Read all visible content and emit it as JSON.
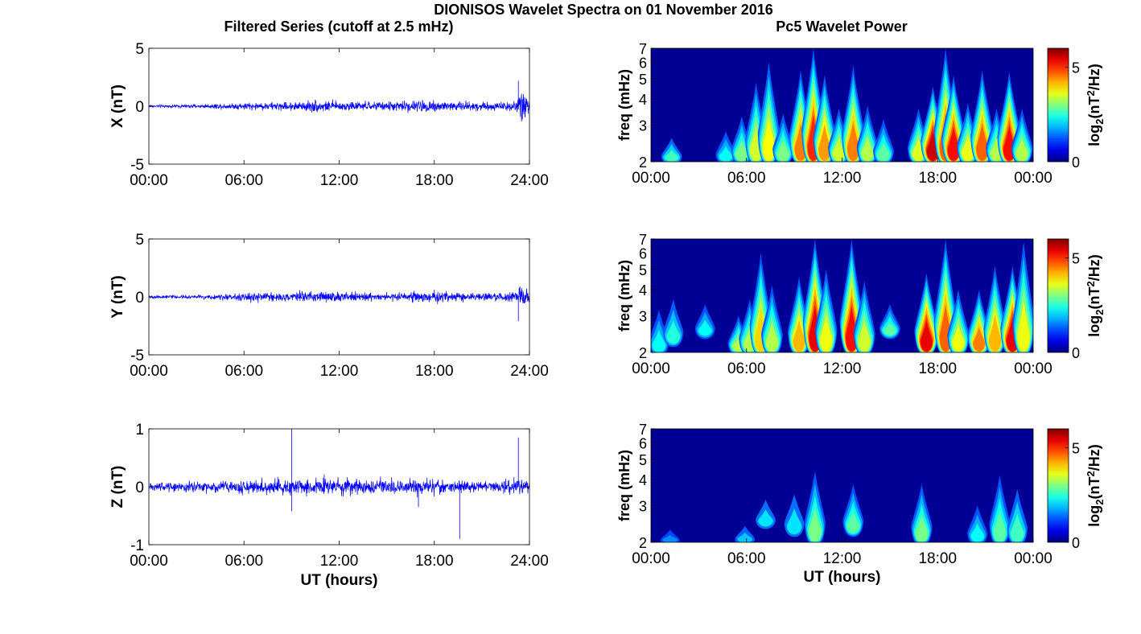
{
  "title": "DIONISOS Wavelet Spectra on 01 November 2016",
  "left_title": "Filtered Series (cutoff at 2.5 mHz)",
  "right_title": "Pc5 Wavelet Power",
  "x_axis_label": "UT (hours)",
  "chart_data": [
    {
      "type": "line",
      "component": "X",
      "ylabel": "X (nT)",
      "xlabel": "",
      "xlim": [
        0,
        24
      ],
      "ylim": [
        -5,
        5
      ],
      "xticks": [
        0,
        6,
        12,
        18,
        24
      ],
      "xtick_labels": [
        "00:00",
        "06:00",
        "12:00",
        "18:00",
        "24:00"
      ],
      "yticks": [
        -5,
        0,
        5
      ],
      "ytick_labels": [
        "-5",
        "0",
        "5"
      ],
      "color": "#0000ff",
      "envelope": {
        "hours": [
          0,
          3,
          6,
          9,
          10.5,
          12,
          15,
          17.5,
          20,
          22.5,
          23.2,
          23.6,
          24
        ],
        "amplitude_nT": [
          0.12,
          0.15,
          0.3,
          0.35,
          0.5,
          0.4,
          0.35,
          0.55,
          0.4,
          0.35,
          0.5,
          1.5,
          0.6
        ]
      },
      "spikes": [
        {
          "hour": 23.3,
          "value": 2.2
        },
        {
          "hour": 23.5,
          "value": -1.3
        }
      ]
    },
    {
      "type": "line",
      "component": "Y",
      "ylabel": "Y (nT)",
      "xlabel": "",
      "xlim": [
        0,
        24
      ],
      "ylim": [
        -5,
        5
      ],
      "xticks": [
        0,
        6,
        12,
        18,
        24
      ],
      "xtick_labels": [
        "00:00",
        "06:00",
        "12:00",
        "18:00",
        "24:00"
      ],
      "yticks": [
        -5,
        0,
        5
      ],
      "ytick_labels": [
        "-5",
        "0",
        "5"
      ],
      "color": "#0000ff",
      "envelope": {
        "hours": [
          0,
          3,
          6,
          9,
          11,
          12.5,
          15,
          17.5,
          20,
          22.5,
          23.3,
          23.7,
          24
        ],
        "amplitude_nT": [
          0.15,
          0.15,
          0.4,
          0.35,
          0.45,
          0.4,
          0.3,
          0.5,
          0.3,
          0.35,
          0.6,
          1.2,
          0.4
        ]
      },
      "spikes": [
        {
          "hour": 23.3,
          "value": -2.1
        },
        {
          "hour": 23.4,
          "value": 0.9
        }
      ]
    },
    {
      "type": "line",
      "component": "Z",
      "ylabel": "Z (nT)",
      "xlabel": "UT (hours)",
      "xlim": [
        0,
        24
      ],
      "ylim": [
        -1,
        1
      ],
      "xticks": [
        0,
        6,
        12,
        18,
        24
      ],
      "xtick_labels": [
        "00:00",
        "06:00",
        "12:00",
        "18:00",
        "24:00"
      ],
      "yticks": [
        -1,
        0,
        1
      ],
      "ytick_labels": [
        "-1",
        "0",
        "1"
      ],
      "color": "#0000ff",
      "envelope": {
        "hours": [
          0,
          3,
          6,
          9,
          11,
          13,
          15,
          17,
          19,
          21,
          22.5,
          23.5,
          24
        ],
        "amplitude_nT": [
          0.07,
          0.09,
          0.11,
          0.14,
          0.16,
          0.12,
          0.12,
          0.15,
          0.1,
          0.09,
          0.1,
          0.15,
          0.08
        ]
      },
      "spikes": [
        {
          "hour": 9.0,
          "value": 1.0
        },
        {
          "hour": 9.0,
          "value": -0.42
        },
        {
          "hour": 19.6,
          "value": -0.9
        },
        {
          "hour": 23.3,
          "value": 0.85
        },
        {
          "hour": 17.0,
          "value": -0.35
        }
      ]
    },
    {
      "type": "heatmap",
      "component": "X",
      "ylabel": "freq (mHz)",
      "xlabel": "",
      "xlim": [
        0,
        24
      ],
      "ylim": [
        2,
        7
      ],
      "yscale": "log",
      "xticks": [
        0,
        6,
        12,
        18,
        24
      ],
      "xtick_labels": [
        "00:00",
        "06:00",
        "12:00",
        "18:00",
        "00:00"
      ],
      "yticks": [
        2,
        3,
        4,
        5,
        6,
        7
      ],
      "ytick_labels": [
        "2",
        "3",
        "4",
        "5",
        "6",
        "7"
      ],
      "colorbar": {
        "label": "log2(nT2/Hz)",
        "range": [
          0,
          6
        ],
        "ticks": [
          0,
          5
        ],
        "tick_labels": [
          "0",
          "5"
        ]
      },
      "colormap": "jet",
      "blobs": [
        {
          "hour": 1.3,
          "fmin": 2.0,
          "fmax": 2.6,
          "level": 2.2
        },
        {
          "hour": 4.7,
          "fmin": 2.0,
          "fmax": 2.8,
          "level": 1.8
        },
        {
          "hour": 5.7,
          "fmin": 2.0,
          "fmax": 3.3,
          "level": 2.6
        },
        {
          "hour": 6.6,
          "fmin": 2.0,
          "fmax": 4.8,
          "level": 3.2
        },
        {
          "hour": 7.4,
          "fmin": 2.0,
          "fmax": 6.0,
          "level": 3.5
        },
        {
          "hour": 8.3,
          "fmin": 2.0,
          "fmax": 3.4,
          "level": 2.6
        },
        {
          "hour": 9.4,
          "fmin": 2.0,
          "fmax": 5.5,
          "level": 4.4
        },
        {
          "hour": 10.2,
          "fmin": 2.0,
          "fmax": 7.0,
          "level": 5.0
        },
        {
          "hour": 10.9,
          "fmin": 2.0,
          "fmax": 5.2,
          "level": 4.2
        },
        {
          "hour": 11.8,
          "fmin": 2.0,
          "fmax": 3.6,
          "level": 3.2
        },
        {
          "hour": 12.7,
          "fmin": 2.0,
          "fmax": 5.8,
          "level": 4.4
        },
        {
          "hour": 13.6,
          "fmin": 2.0,
          "fmax": 3.7,
          "level": 3.0
        },
        {
          "hour": 14.6,
          "fmin": 2.0,
          "fmax": 3.2,
          "level": 2.4
        },
        {
          "hour": 16.8,
          "fmin": 2.0,
          "fmax": 3.6,
          "level": 3.3
        },
        {
          "hour": 17.7,
          "fmin": 2.0,
          "fmax": 4.6,
          "level": 5.6
        },
        {
          "hour": 18.5,
          "fmin": 2.0,
          "fmax": 7.0,
          "level": 4.6
        },
        {
          "hour": 19.0,
          "fmin": 2.0,
          "fmax": 5.2,
          "level": 5.2
        },
        {
          "hour": 19.9,
          "fmin": 2.0,
          "fmax": 3.8,
          "level": 3.4
        },
        {
          "hour": 20.8,
          "fmin": 2.0,
          "fmax": 5.5,
          "level": 4.6
        },
        {
          "hour": 21.7,
          "fmin": 2.0,
          "fmax": 3.6,
          "level": 3.0
        },
        {
          "hour": 22.5,
          "fmin": 2.0,
          "fmax": 5.4,
          "level": 5.2
        },
        {
          "hour": 23.3,
          "fmin": 2.0,
          "fmax": 3.6,
          "level": 3.0
        }
      ]
    },
    {
      "type": "heatmap",
      "component": "Y",
      "ylabel": "freq (mHz)",
      "xlabel": "",
      "xlim": [
        0,
        24
      ],
      "ylim": [
        2,
        7
      ],
      "yscale": "log",
      "xticks": [
        0,
        6,
        12,
        18,
        24
      ],
      "xtick_labels": [
        "00:00",
        "06:00",
        "12:00",
        "18:00",
        "00:00"
      ],
      "yticks": [
        2,
        3,
        4,
        5,
        6,
        7
      ],
      "ytick_labels": [
        "2",
        "3",
        "4",
        "5",
        "6",
        "7"
      ],
      "colorbar": {
        "label": "log2(nT2/Hz)",
        "range": [
          0,
          6
        ],
        "ticks": [
          0,
          5
        ],
        "tick_labels": [
          "0",
          "5"
        ]
      },
      "colormap": "jet",
      "blobs": [
        {
          "hour": 0.5,
          "fmin": 2.0,
          "fmax": 3.2,
          "level": 1.8
        },
        {
          "hour": 1.4,
          "fmin": 2.2,
          "fmax": 3.6,
          "level": 2.0
        },
        {
          "hour": 3.4,
          "fmin": 2.4,
          "fmax": 3.4,
          "level": 1.8
        },
        {
          "hour": 5.5,
          "fmin": 2.0,
          "fmax": 3.0,
          "level": 3.0
        },
        {
          "hour": 6.2,
          "fmin": 2.0,
          "fmax": 3.6,
          "level": 3.0
        },
        {
          "hour": 6.9,
          "fmin": 2.0,
          "fmax": 6.0,
          "level": 3.8
        },
        {
          "hour": 7.6,
          "fmin": 2.0,
          "fmax": 4.2,
          "level": 3.0
        },
        {
          "hour": 9.3,
          "fmin": 2.0,
          "fmax": 4.6,
          "level": 4.0
        },
        {
          "hour": 10.3,
          "fmin": 2.0,
          "fmax": 7.0,
          "level": 5.4
        },
        {
          "hour": 11.0,
          "fmin": 2.0,
          "fmax": 5.0,
          "level": 3.4
        },
        {
          "hour": 12.6,
          "fmin": 2.0,
          "fmax": 7.0,
          "level": 5.2
        },
        {
          "hour": 13.4,
          "fmin": 2.0,
          "fmax": 4.4,
          "level": 3.2
        },
        {
          "hour": 15.0,
          "fmin": 2.4,
          "fmax": 3.4,
          "level": 2.4
        },
        {
          "hour": 17.3,
          "fmin": 2.0,
          "fmax": 4.8,
          "level": 5.4
        },
        {
          "hour": 18.5,
          "fmin": 2.0,
          "fmax": 7.0,
          "level": 4.6
        },
        {
          "hour": 19.3,
          "fmin": 2.0,
          "fmax": 4.0,
          "level": 3.4
        },
        {
          "hour": 20.6,
          "fmin": 2.0,
          "fmax": 4.0,
          "level": 4.4
        },
        {
          "hour": 21.6,
          "fmin": 2.0,
          "fmax": 5.2,
          "level": 4.0
        },
        {
          "hour": 22.7,
          "fmin": 2.0,
          "fmax": 5.2,
          "level": 5.4
        },
        {
          "hour": 23.4,
          "fmin": 2.0,
          "fmax": 6.8,
          "level": 3.4
        }
      ]
    },
    {
      "type": "heatmap",
      "component": "Z",
      "ylabel": "freq (mHz)",
      "xlabel": "UT (hours)",
      "xlim": [
        0,
        24
      ],
      "ylim": [
        2,
        7
      ],
      "yscale": "log",
      "xticks": [
        0,
        6,
        12,
        18,
        24
      ],
      "xtick_labels": [
        "00:00",
        "06:00",
        "12:00",
        "18:00",
        "00:00"
      ],
      "yticks": [
        2,
        3,
        4,
        5,
        6,
        7
      ],
      "ytick_labels": [
        "2",
        "3",
        "4",
        "5",
        "6",
        "7"
      ],
      "colorbar": {
        "label": "log2(nT2/Hz)",
        "range": [
          0,
          6
        ],
        "ticks": [
          0,
          5
        ],
        "tick_labels": [
          "0",
          "5"
        ]
      },
      "colormap": "jet",
      "blobs": [
        {
          "hour": 1.2,
          "fmin": 2.0,
          "fmax": 2.3,
          "level": 1.0
        },
        {
          "hour": 5.9,
          "fmin": 2.0,
          "fmax": 2.4,
          "level": 1.4
        },
        {
          "hour": 7.2,
          "fmin": 2.4,
          "fmax": 3.2,
          "level": 1.6
        },
        {
          "hour": 9.0,
          "fmin": 2.2,
          "fmax": 3.4,
          "level": 1.6
        },
        {
          "hour": 10.3,
          "fmin": 2.0,
          "fmax": 4.4,
          "level": 2.6
        },
        {
          "hour": 12.7,
          "fmin": 2.2,
          "fmax": 3.8,
          "level": 2.4
        },
        {
          "hour": 17.0,
          "fmin": 2.0,
          "fmax": 3.8,
          "level": 2.6
        },
        {
          "hour": 20.5,
          "fmin": 2.0,
          "fmax": 3.0,
          "level": 1.8
        },
        {
          "hour": 21.9,
          "fmin": 2.0,
          "fmax": 4.2,
          "level": 2.4
        },
        {
          "hour": 23.0,
          "fmin": 2.0,
          "fmax": 3.6,
          "level": 2.2
        }
      ]
    }
  ]
}
